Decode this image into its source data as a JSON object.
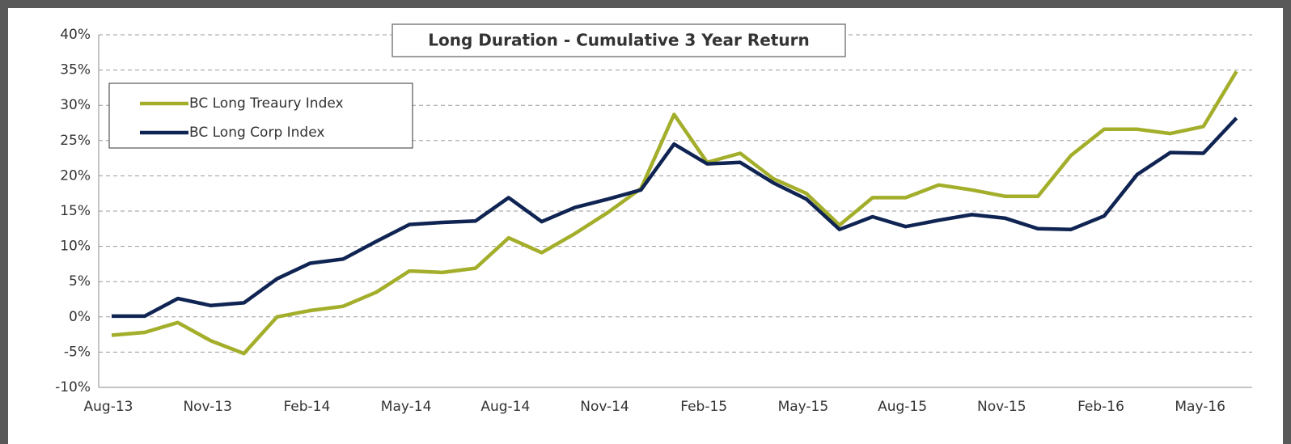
{
  "chart_data": {
    "type": "line",
    "title": "Long Duration - Cumulative 3 Year Return",
    "categories": [
      "Aug-13",
      null,
      null,
      "Nov-13",
      null,
      null,
      "Feb-14",
      null,
      null,
      "May-14",
      null,
      null,
      "Aug-14",
      null,
      null,
      "Nov-14",
      null,
      null,
      "Feb-15",
      null,
      null,
      "May-15",
      null,
      null,
      "Aug-15",
      null,
      null,
      "Nov-15",
      null,
      null,
      "Feb-16",
      null,
      null,
      "May-16",
      null
    ],
    "series": [
      {
        "name": "BC Long Treaury Index",
        "color": "#a3ae2a",
        "values": [
          -2.6,
          -2.2,
          -0.8,
          -3.4,
          -5.2,
          0,
          0.9,
          1.5,
          3.5,
          6.5,
          6.3,
          6.9,
          11.2,
          9.1,
          11.8,
          14.8,
          18.2,
          28.7,
          21.9,
          23.2,
          19.6,
          17.5,
          13.0,
          16.9,
          16.9,
          18.7,
          18.0,
          17.1,
          17.1,
          22.9,
          26.6,
          26.6,
          26.0,
          27.0,
          34.8
        ]
      },
      {
        "name": "BC Long Corp Index",
        "color": "#0f2452",
        "values": [
          0.1,
          0.1,
          2.6,
          1.6,
          2.0,
          5.4,
          7.6,
          8.2,
          10.7,
          13.1,
          13.4,
          13.6,
          16.9,
          13.5,
          15.5,
          16.7,
          18.0,
          24.5,
          21.7,
          21.9,
          19.0,
          16.7,
          12.4,
          14.2,
          12.8,
          13.7,
          14.5,
          14.0,
          12.5,
          12.4,
          14.3,
          20.2,
          23.3,
          23.2,
          28.2
        ]
      }
    ],
    "ylim": [
      -10,
      40
    ],
    "yticks": [
      {
        "value": -10,
        "label": "-10%"
      },
      {
        "value": -5,
        "label": "-5%"
      },
      {
        "value": 0,
        "label": "0%"
      },
      {
        "value": 5,
        "label": "5%"
      },
      {
        "value": 10,
        "label": "10%"
      },
      {
        "value": 15,
        "label": "15%"
      },
      {
        "value": 20,
        "label": "20%"
      },
      {
        "value": 25,
        "label": "25%"
      },
      {
        "value": 30,
        "label": "30%"
      },
      {
        "value": 35,
        "label": "35%"
      },
      {
        "value": 40,
        "label": "40%"
      }
    ],
    "grid": true,
    "legend": "upper left"
  }
}
